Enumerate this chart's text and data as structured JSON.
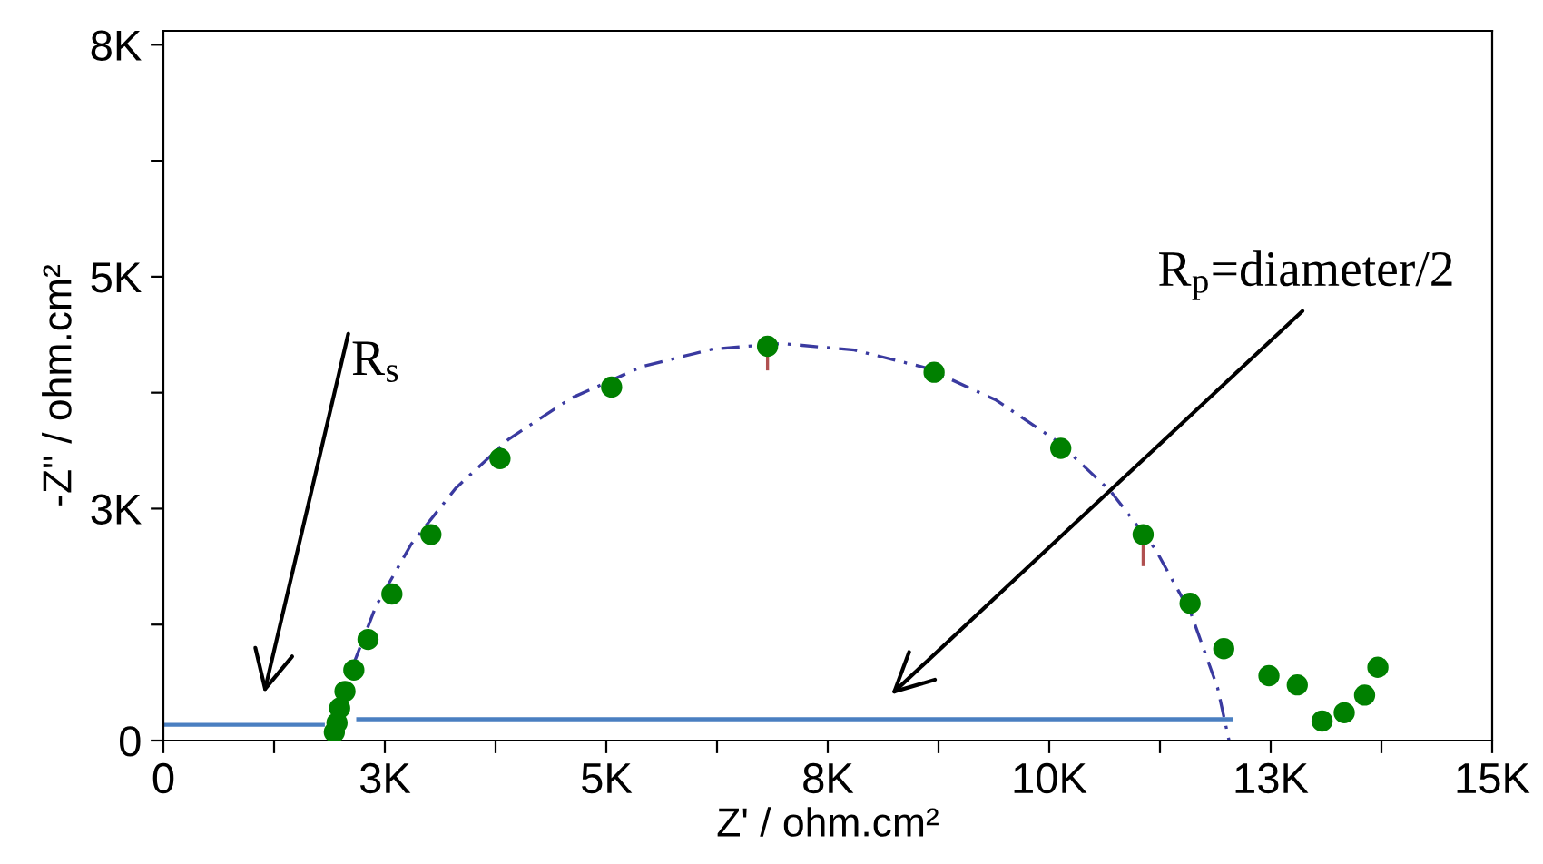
{
  "chart_data": {
    "type": "scatter",
    "xlabel": "Z' / ohm.cm²",
    "ylabel": "-Z\" / ohm.cm²",
    "xlim": [
      0,
      15000
    ],
    "ylim": [
      0,
      7650
    ],
    "xticks": [
      {
        "value": 0,
        "label": "0"
      },
      {
        "value": 1250,
        "label": null
      },
      {
        "value": 2500,
        "label": "3K"
      },
      {
        "value": 3750,
        "label": null
      },
      {
        "value": 5000,
        "label": "5K"
      },
      {
        "value": 6250,
        "label": null
      },
      {
        "value": 7500,
        "label": "8K"
      },
      {
        "value": 8750,
        "label": null
      },
      {
        "value": 10000,
        "label": "10K"
      },
      {
        "value": 11250,
        "label": null
      },
      {
        "value": 12500,
        "label": "13K"
      },
      {
        "value": 13750,
        "label": null
      },
      {
        "value": 15000,
        "label": "15K"
      }
    ],
    "yticks": [
      {
        "value": 0,
        "label": "0"
      },
      {
        "value": 1250,
        "label": null
      },
      {
        "value": 2500,
        "label": "3K"
      },
      {
        "value": 3750,
        "label": null
      },
      {
        "value": 5000,
        "label": "5K"
      },
      {
        "value": 6250,
        "label": null
      },
      {
        "value": 7500,
        "label": "8K"
      }
    ],
    "grid": false,
    "legend": false,
    "series": [
      {
        "type": "line",
        "color": "#3a3aa0",
        "line_style": "dashed",
        "marker": "none",
        "x": [
          1930,
          2100,
          2400,
          2800,
          3300,
          3900,
          4600,
          5400,
          6200,
          6980,
          7800,
          8600,
          9400,
          10100,
          10700,
          11200,
          11600,
          11900,
          12030
        ],
        "values": [
          0,
          710,
          1450,
          2120,
          2720,
          3250,
          3690,
          4030,
          4220,
          4280,
          4210,
          4020,
          3670,
          3220,
          2680,
          2060,
          1370,
          570,
          0
        ]
      },
      {
        "type": "line",
        "color": "#4a7fc1",
        "line_style": "solid",
        "marker": "none",
        "x": [
          0,
          1800,
          2000,
          2200,
          12050
        ],
        "values": [
          170,
          170,
          null,
          230,
          230
        ]
      },
      {
        "color": "#008000",
        "marker": "circle",
        "x": [
          1930,
          1960,
          1990,
          2050,
          2150,
          2310,
          2580,
          3020,
          3800,
          5060,
          6820,
          8700,
          10130,
          11060,
          11590,
          11970,
          12480,
          12800,
          13080,
          13330,
          13560,
          13710
        ],
        "values": [
          90,
          190,
          350,
          530,
          760,
          1090,
          1580,
          2220,
          3040,
          3810,
          4250,
          3970,
          3150,
          2220,
          1480,
          990,
          700,
          600,
          210,
          300,
          490,
          790
        ],
        "errors": [
          null,
          null,
          null,
          null,
          null,
          null,
          null,
          null,
          null,
          null,
          [
            3990,
            4250
          ],
          null,
          null,
          [
            1880,
            2220
          ],
          null,
          null,
          null,
          null,
          null,
          null,
          null,
          null
        ]
      }
    ],
    "annotations": [
      "R$_{s}$",
      "R$_{p}$=diameter/2"
    ]
  }
}
